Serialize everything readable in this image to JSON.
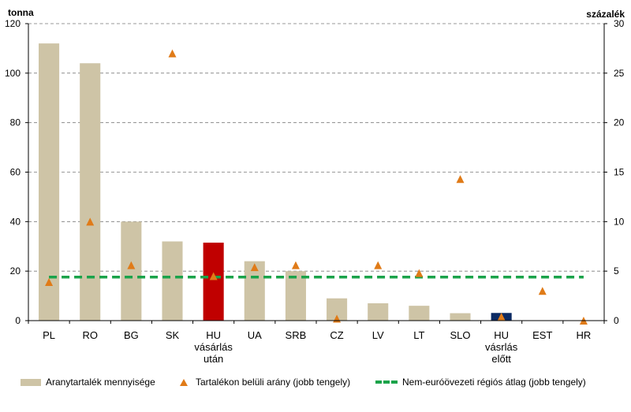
{
  "chart_data": {
    "type": "bar",
    "left_unit": "tonna",
    "right_unit": "százalék",
    "categories": [
      [
        "PL"
      ],
      [
        "RO"
      ],
      [
        "BG"
      ],
      [
        "SK"
      ],
      [
        "HU",
        "vásárlás",
        "után"
      ],
      [
        "UA"
      ],
      [
        "SRB"
      ],
      [
        "CZ"
      ],
      [
        "LV"
      ],
      [
        "LT"
      ],
      [
        "SLO"
      ],
      [
        "HU",
        "vásrlás",
        "előtt"
      ],
      [
        "EST"
      ],
      [
        "HR"
      ]
    ],
    "left_ticks": [
      "0",
      "20",
      "40",
      "60",
      "80",
      "100",
      "120"
    ],
    "right_ticks": [
      "0",
      "5",
      "10",
      "15",
      "20",
      "25",
      "30"
    ],
    "ylim_left": [
      0,
      120
    ],
    "ylim_right": [
      0,
      30
    ],
    "grid": true,
    "legend_position": "bottom",
    "series": [
      {
        "name": "Aranytartalék mennyisége",
        "kind": "bar",
        "axis": "left",
        "values": [
          112,
          104,
          40,
          32,
          31.5,
          24,
          20,
          9,
          7,
          6,
          3,
          3.1,
          0,
          0
        ],
        "colors": [
          "#cec4a6",
          "#cec4a6",
          "#cec4a6",
          "#cec4a6",
          "#c00000",
          "#cec4a6",
          "#cec4a6",
          "#cec4a6",
          "#cec4a6",
          "#cec4a6",
          "#cec4a6",
          "#0b2a63",
          "#cec4a6",
          "#cec4a6"
        ]
      },
      {
        "name": "Tartalékon belüli arány (jobb tengely)",
        "kind": "marker",
        "axis": "right",
        "color": "#e07b18",
        "values": [
          3.9,
          10,
          5.6,
          27,
          4.5,
          5.4,
          5.6,
          0.2,
          5.6,
          4.8,
          14.3,
          0.4,
          3.0,
          0
        ]
      },
      {
        "name": "Nem-euróövezeti régiós átlag (jobb tengely)",
        "kind": "dashed-line",
        "axis": "right",
        "color": "#1aa34a",
        "value": 4.4
      }
    ]
  }
}
